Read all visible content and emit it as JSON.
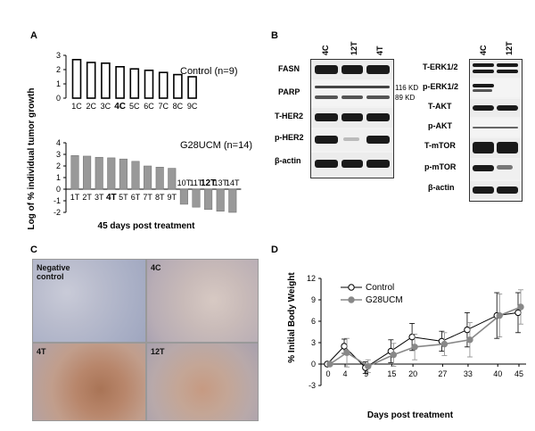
{
  "panel_labels": {
    "a": "A",
    "b": "B",
    "c": "C",
    "d": "D"
  },
  "panel_a": {
    "ylabel": "Log of % individual tumor growth",
    "xlabel": "45 days post treatment",
    "control_title": "Control (n=9)",
    "treated_title": "G28UCM (n=14)",
    "control_yticks": [
      "0",
      "1",
      "2",
      "3"
    ],
    "treated_yticks": [
      "4",
      "3",
      "2",
      "1",
      "0",
      "-1",
      "-2"
    ]
  },
  "panel_b": {
    "left_lanes": [
      "4C",
      "12T",
      "4T"
    ],
    "right_lanes": [
      "4C",
      "12T"
    ],
    "left_rows": [
      "FASN",
      "PARP",
      "T-HER2",
      "p-HER2",
      "β-actin"
    ],
    "kd_top": "116 KD",
    "kd_bottom": "89  KD",
    "right_rows": [
      "T-ERK1/2",
      "p-ERK1/2",
      "T-AKT",
      "p-AKT",
      "T-mTOR",
      "p-mTOR",
      "β-actin"
    ]
  },
  "panel_c": {
    "tiles": [
      {
        "label_line1": "Negative",
        "label_line2": "control"
      },
      {
        "label_line1": "4C",
        "label_line2": ""
      },
      {
        "label_line1": "4T",
        "label_line2": ""
      },
      {
        "label_line1": "12T",
        "label_line2": ""
      }
    ]
  },
  "panel_d": {
    "ylabel": "% Initial Body Weight",
    "xlabel": "Days post treatment",
    "legend": [
      "Control",
      "G28UCM"
    ]
  },
  "chart_data": [
    {
      "type": "bar",
      "title": "Control (n=9)",
      "categories": [
        "1C",
        "2C",
        "3C",
        "4C",
        "5C",
        "6C",
        "7C",
        "8C",
        "9C"
      ],
      "values": [
        2.7,
        2.5,
        2.45,
        2.2,
        2.05,
        1.95,
        1.8,
        1.65,
        1.5
      ],
      "ylabel": "Log of % individual tumor growth",
      "ylim": [
        0,
        3
      ],
      "bar_color": "#ffffff",
      "highlight": "4C"
    },
    {
      "type": "bar",
      "title": "G28UCM (n=14)",
      "categories": [
        "1T",
        "2T",
        "3T",
        "4T",
        "5T",
        "6T",
        "7T",
        "8T",
        "9T",
        "10T",
        "11T",
        "12T",
        "13T",
        "14T"
      ],
      "values": [
        2.9,
        2.85,
        2.75,
        2.7,
        2.6,
        2.4,
        2.0,
        1.9,
        1.8,
        -1.3,
        -1.55,
        -1.75,
        -1.9,
        -2.0
      ],
      "xlabel": "45 days post treatment",
      "ylim": [
        -2,
        4
      ],
      "bar_color": "#999999",
      "highlight": "12T"
    },
    {
      "type": "line",
      "x": [
        0,
        4,
        9,
        15,
        20,
        27,
        33,
        40,
        45
      ],
      "xlabel": "Days post treatment",
      "ylabel": "% Initial Body Weight",
      "ylim": [
        -3,
        12
      ],
      "yticks": [
        -3,
        0,
        3,
        6,
        9,
        12
      ],
      "series": [
        {
          "name": "Control",
          "values": [
            0,
            2.5,
            -0.5,
            1.8,
            3.8,
            3.2,
            4.8,
            6.8,
            7.2
          ],
          "errors": [
            0,
            1.0,
            0.8,
            1.6,
            1.9,
            1.4,
            2.4,
            3.2,
            2.8
          ],
          "marker": "open-circle"
        },
        {
          "name": "G28UCM",
          "values": [
            0,
            1.6,
            -0.3,
            1.3,
            2.4,
            2.8,
            3.4,
            6.8,
            8.0
          ],
          "errors": [
            0,
            2.0,
            0.9,
            1.6,
            1.8,
            1.6,
            2.4,
            3.0,
            2.4
          ],
          "marker": "gray-circle",
          "color": "#888888"
        }
      ]
    }
  ]
}
